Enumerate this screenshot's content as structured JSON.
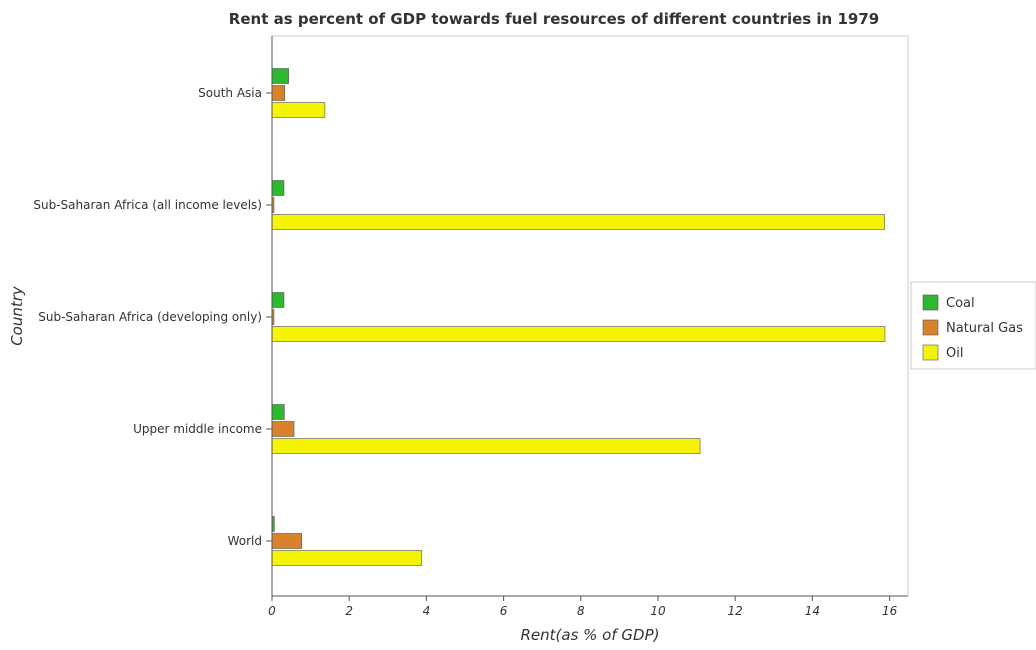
{
  "chart_data": {
    "type": "bar",
    "orientation": "horizontal",
    "title": "Rent as percent of GDP towards fuel resources of different countries in 1979",
    "xlabel": "Rent(as % of GDP)",
    "ylabel": "Country",
    "xlim": [
      0,
      16.6
    ],
    "xticks": [
      "0",
      "2",
      "4",
      "6",
      "8",
      "10",
      "12",
      "14",
      "16"
    ],
    "categories": [
      "South Asia",
      "Sub-Saharan Africa (all income levels)",
      "Sub-Saharan Africa (developing only)",
      "Upper middle income",
      "World"
    ],
    "series": [
      {
        "name": "Coal",
        "color": "#2db82d",
        "values": [
          0.43,
          0.31,
          0.31,
          0.32,
          0.06
        ]
      },
      {
        "name": "Natural Gas",
        "color": "#d9822b",
        "values": [
          0.33,
          0.05,
          0.05,
          0.57,
          0.77
        ]
      },
      {
        "name": "Oil",
        "color": "#f4f400",
        "values": [
          1.37,
          15.87,
          15.88,
          11.09,
          3.88
        ]
      }
    ],
    "legend_position": "right",
    "grid": false
  }
}
